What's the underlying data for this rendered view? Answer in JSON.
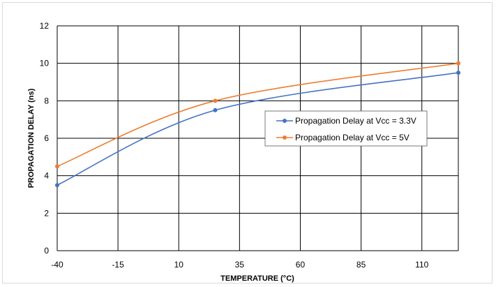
{
  "chart_data": {
    "type": "line",
    "xlabel": "TEMPERATURE (°C)",
    "ylabel": "PROPAGATION DELAY (ns)",
    "xlim": [
      -40,
      125
    ],
    "ylim": [
      0,
      12
    ],
    "x_ticks": [
      -40,
      -15,
      10,
      35,
      60,
      85,
      110
    ],
    "y_ticks": [
      0,
      2,
      4,
      6,
      8,
      10,
      12
    ],
    "grid": true,
    "smooth": true,
    "legend_position": "center-right",
    "series": [
      {
        "name": "Propagation Delay at Vcc = 3.3V",
        "color": "#4472C4",
        "x": [
          -40,
          25,
          125
        ],
        "values": [
          3.5,
          7.5,
          9.5
        ]
      },
      {
        "name": "Propagation Delay at Vcc = 5V",
        "color": "#ED7D31",
        "x": [
          -40,
          25,
          125
        ],
        "values": [
          4.5,
          8.0,
          10.0
        ]
      }
    ]
  }
}
